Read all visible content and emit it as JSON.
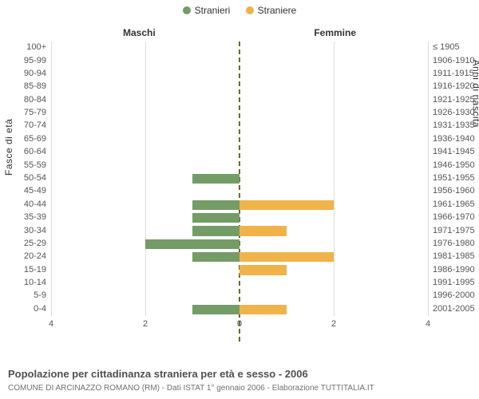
{
  "legend": {
    "male": {
      "label": "Stranieri",
      "color": "#749c66"
    },
    "female": {
      "label": "Straniere",
      "color": "#f0b34a"
    }
  },
  "headers": {
    "left": "Maschi",
    "right": "Femmine"
  },
  "axis_titles": {
    "left": "Fasce di età",
    "right": "Anni di nascita"
  },
  "chart": {
    "type": "population-pyramid",
    "max_value": 4,
    "x_ticks_left": [
      4,
      2,
      0
    ],
    "x_ticks_right": [
      0,
      2,
      4
    ],
    "grid_color": "#dddddd",
    "rows": [
      {
        "age": "100+",
        "birth": "≤ 1905",
        "m": 0,
        "f": 0
      },
      {
        "age": "95-99",
        "birth": "1906-1910",
        "m": 0,
        "f": 0
      },
      {
        "age": "90-94",
        "birth": "1911-1915",
        "m": 0,
        "f": 0
      },
      {
        "age": "85-89",
        "birth": "1916-1920",
        "m": 0,
        "f": 0
      },
      {
        "age": "80-84",
        "birth": "1921-1925",
        "m": 0,
        "f": 0
      },
      {
        "age": "75-79",
        "birth": "1926-1930",
        "m": 0,
        "f": 0
      },
      {
        "age": "70-74",
        "birth": "1931-1935",
        "m": 0,
        "f": 0
      },
      {
        "age": "65-69",
        "birth": "1936-1940",
        "m": 0,
        "f": 0
      },
      {
        "age": "60-64",
        "birth": "1941-1945",
        "m": 0,
        "f": 0
      },
      {
        "age": "55-59",
        "birth": "1946-1950",
        "m": 0,
        "f": 0
      },
      {
        "age": "50-54",
        "birth": "1951-1955",
        "m": 1,
        "f": 0
      },
      {
        "age": "45-49",
        "birth": "1956-1960",
        "m": 0,
        "f": 0
      },
      {
        "age": "40-44",
        "birth": "1961-1965",
        "m": 1,
        "f": 2
      },
      {
        "age": "35-39",
        "birth": "1966-1970",
        "m": 1,
        "f": 0
      },
      {
        "age": "30-34",
        "birth": "1971-1975",
        "m": 1,
        "f": 1
      },
      {
        "age": "25-29",
        "birth": "1976-1980",
        "m": 2,
        "f": 0
      },
      {
        "age": "20-24",
        "birth": "1981-1985",
        "m": 1,
        "f": 2
      },
      {
        "age": "15-19",
        "birth": "1986-1990",
        "m": 0,
        "f": 1
      },
      {
        "age": "10-14",
        "birth": "1991-1995",
        "m": 0,
        "f": 0
      },
      {
        "age": "5-9",
        "birth": "1996-2000",
        "m": 0,
        "f": 0
      },
      {
        "age": "0-4",
        "birth": "2001-2005",
        "m": 1,
        "f": 1
      }
    ]
  },
  "caption": {
    "line1": "Popolazione per cittadinanza straniera per età e sesso - 2006",
    "line2": "COMUNE DI ARCINAZZO ROMANO (RM) - Dati ISTAT 1° gennaio 2006 - Elaborazione TUTTITALIA.IT"
  }
}
